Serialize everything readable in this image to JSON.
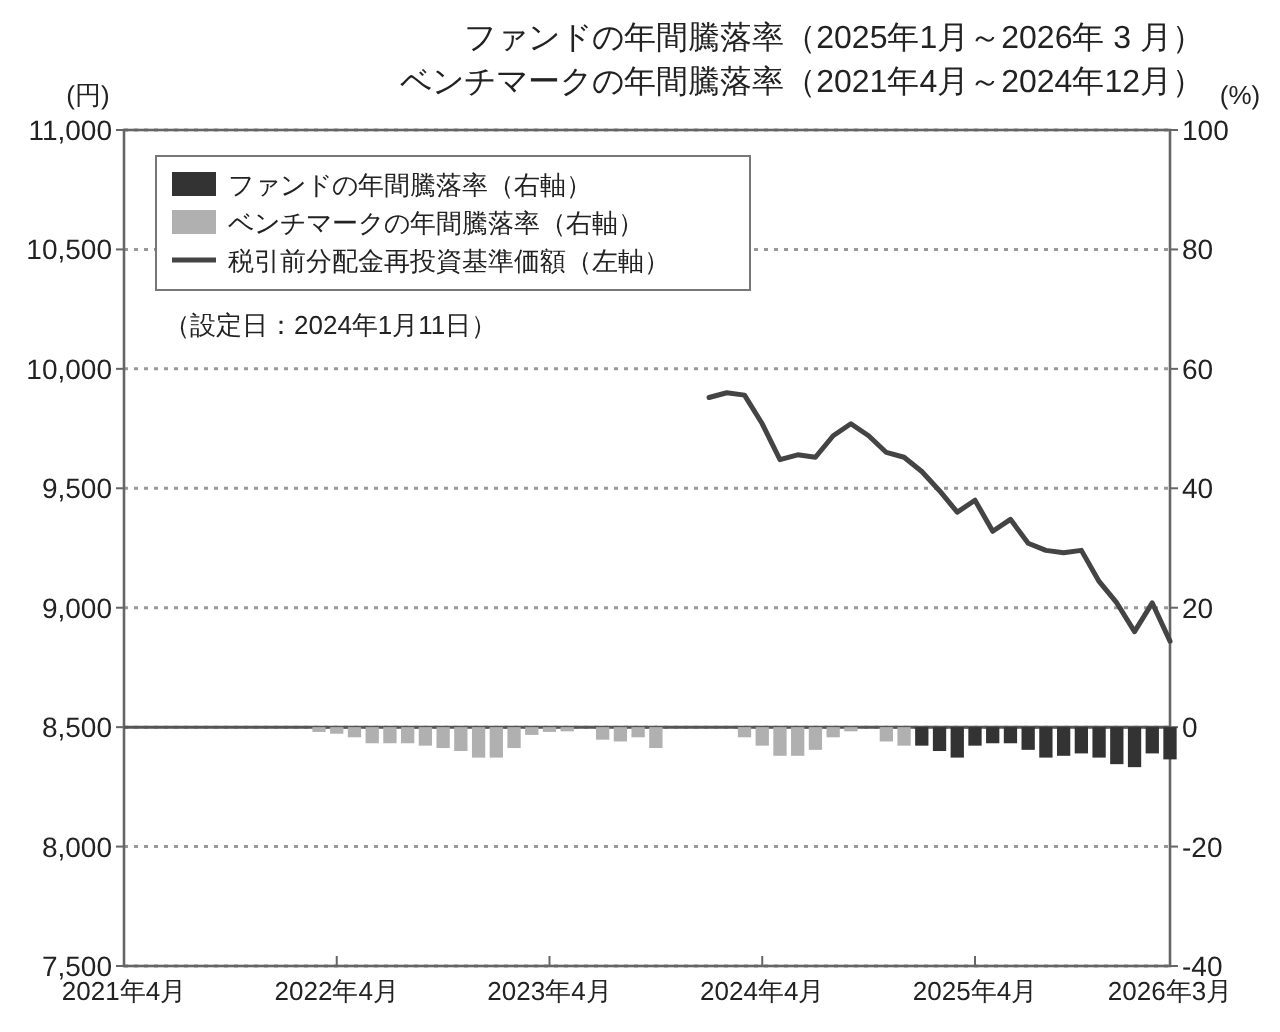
{
  "chart_data": {
    "type": "bar",
    "title": "ファンドの年間騰落率（2025年1月～2026年 3 月）",
    "subtitle": "ベンチマークの年間騰落率（2021年4月～2024年12月）",
    "ylabel": "(円)",
    "y2label": "(%)",
    "annotations": [
      "（設定日：2024年1月11日）"
    ],
    "categories": [
      "2021年4月",
      null,
      null,
      null,
      null,
      null,
      null,
      null,
      null,
      null,
      null,
      null,
      "2022年4月",
      null,
      null,
      null,
      null,
      null,
      null,
      null,
      null,
      null,
      null,
      null,
      "2023年4月",
      null,
      null,
      null,
      null,
      null,
      null,
      null,
      null,
      null,
      null,
      null,
      "2024年4月",
      null,
      null,
      null,
      null,
      null,
      null,
      null,
      null,
      null,
      null,
      null,
      "2025年4月",
      null,
      null,
      null,
      null,
      null,
      null,
      null,
      null,
      null,
      null,
      "2026年3月"
    ],
    "series": [
      {
        "name": "ファンドの年間騰落率（右軸）",
        "axis": "y2",
        "color": "#333333",
        "values": [
          null,
          null,
          null,
          null,
          null,
          null,
          null,
          null,
          null,
          null,
          null,
          null,
          null,
          null,
          null,
          null,
          null,
          null,
          null,
          null,
          null,
          null,
          null,
          null,
          null,
          null,
          null,
          null,
          null,
          null,
          null,
          null,
          null,
          null,
          null,
          null,
          null,
          null,
          null,
          null,
          null,
          null,
          null,
          null,
          null,
          -3.1,
          -4.0,
          -5.1,
          -3.1,
          -2.7,
          -2.7,
          -3.8,
          -5.1,
          -4.8,
          -4.4,
          -5.1,
          -6.2,
          -6.7,
          -4.4,
          -5.4
        ]
      },
      {
        "name": "ベンチマークの年間騰落率（右軸）",
        "axis": "y2",
        "color": "#b0b0b0",
        "values": [
          0,
          0,
          0,
          0,
          0,
          0,
          0,
          0,
          0,
          0,
          0,
          -0.8,
          -1.1,
          -1.7,
          -2.7,
          -2.7,
          -2.7,
          -3.1,
          -3.5,
          -4.0,
          -5.1,
          -5.1,
          -3.5,
          -1.3,
          -0.8,
          -0.7,
          0,
          -2.1,
          -2.4,
          -1.7,
          -3.5,
          0,
          0,
          0,
          0,
          -1.7,
          -3.1,
          -4.8,
          -4.8,
          -3.8,
          -1.7,
          -0.7,
          0,
          -2.4,
          -3.1,
          null,
          null,
          null,
          null,
          null,
          null,
          null,
          null,
          null,
          null,
          null,
          null,
          null,
          null,
          null
        ]
      },
      {
        "name": "税引前分配金再投資基準価額（左軸）",
        "type": "line",
        "axis": "y",
        "color": "#444444",
        "values": [
          null,
          null,
          null,
          null,
          null,
          null,
          null,
          null,
          null,
          null,
          null,
          null,
          null,
          null,
          null,
          null,
          null,
          null,
          null,
          null,
          null,
          null,
          null,
          null,
          null,
          null,
          null,
          null,
          null,
          null,
          null,
          null,
          null,
          9880,
          9900,
          9890,
          9770,
          9620,
          9640,
          9630,
          9720,
          9770,
          9720,
          9650,
          9630,
          9570,
          9490,
          9400,
          9450,
          9320,
          9370,
          9270,
          9240,
          9230,
          9240,
          9110,
          9020,
          8900,
          9020,
          8860
        ]
      }
    ],
    "ylim": [
      7500,
      11000
    ],
    "yticks": [
      {
        "value": 7500,
        "label": "7,500"
      },
      {
        "value": 8000,
        "label": "8,000"
      },
      {
        "value": 8500,
        "label": "8,500"
      },
      {
        "value": 9000,
        "label": "9,000"
      },
      {
        "value": 9500,
        "label": "9,500"
      },
      {
        "value": 10000,
        "label": "10,000"
      },
      {
        "value": 10500,
        "label": "10,500"
      },
      {
        "value": 11000,
        "label": "11,000"
      }
    ],
    "y2lim": [
      -40,
      100
    ],
    "y2ticks": [
      -40,
      -20,
      0,
      20,
      40,
      60,
      80,
      100
    ],
    "grid": "y",
    "legend": "top left",
    "ref_lines": [
      {
        "axis": "y2",
        "value": 0,
        "color": "#555555"
      }
    ]
  }
}
